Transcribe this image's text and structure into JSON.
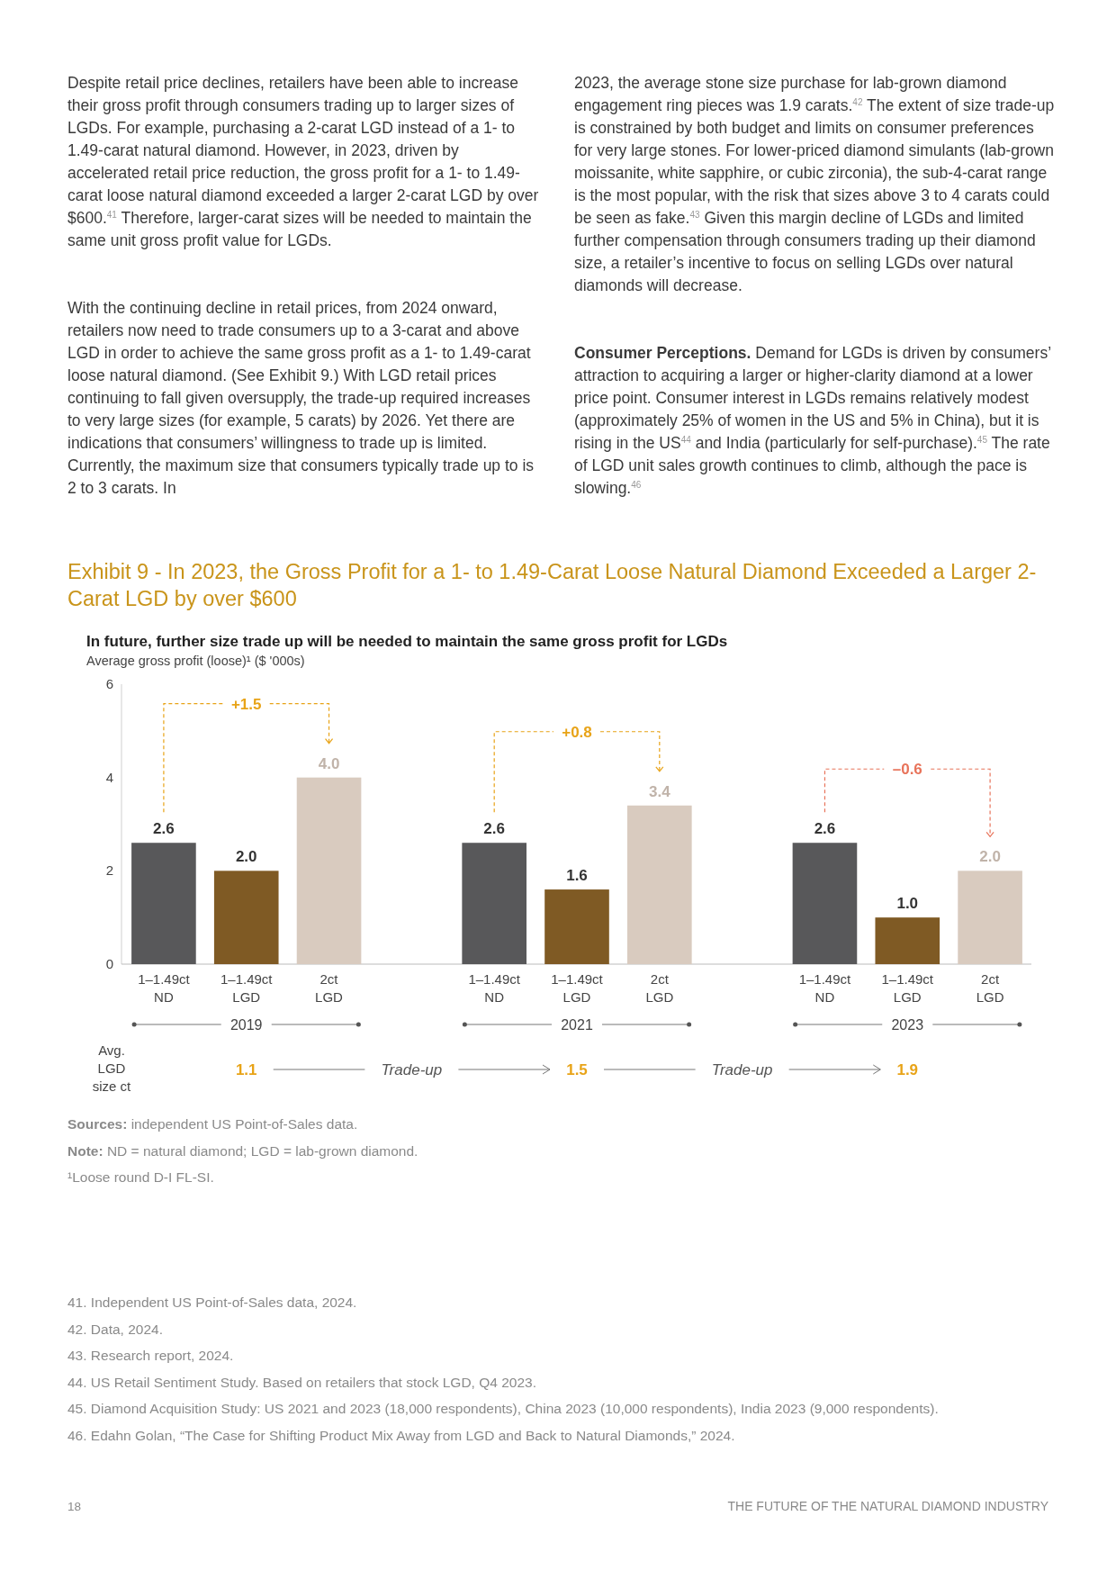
{
  "chart_data": {
    "type": "bar",
    "title": "Exhibit 9 - In 2023, the Gross Profit for a 1- to 1.49-Carat Loose Natural Diamond Exceeded a Larger 2-Carat LGD by over $600",
    "subtitle": "In future, further size trade up will be needed to maintain the same gross profit for LGDs",
    "ylabel": "Average gross profit (loose)¹ ($ '000s)",
    "categories": [
      "1–1.49ct\nND",
      "1–1.49ct\nLGD",
      "2ct\nLGD",
      null,
      "1–1.49ct\nND",
      "1–1.49ct\nLGD",
      "2ct\nLGD",
      null,
      "1–1.49ct\nND",
      "1–1.49ct\nLGD",
      "2ct\nLGD"
    ],
    "values": [
      2.6,
      2.0,
      4.0,
      null,
      2.6,
      1.6,
      3.4,
      null,
      2.6,
      1.0,
      2.0
    ],
    "colors": [
      "#58585a",
      "#7f5a24",
      "#d9cbbf",
      null,
      "#58585a",
      "#7f5a24",
      "#d9cbbf",
      null,
      "#58585a",
      "#7f5a24",
      "#d9cbbf"
    ],
    "value_labels": [
      "2.6",
      "2.0",
      "4.0",
      null,
      "2.6",
      "1.6",
      "3.4",
      null,
      "2.6",
      "1.0",
      "2.0"
    ],
    "ylim": [
      0,
      6
    ],
    "yticks": [
      0,
      2,
      4,
      6
    ],
    "grid": false,
    "annotations": [
      "Despite retail price declines, retailers have been able to increase their gross profit through consumers trading up to larger sizes of LGDs. For example, purchasing a 2-carat LGD instead of a 1- to 1.49-carat natural diamond. However, in 2023, driven by accelerated retail price reduction, the gross profit for a 1- to 1.49-carat loose natural diamond exceeded a larger 2-carat LGD by over $600.$^{41}$ Therefore, larger-carat sizes will be needed to maintain the same unit gross profit value for LGDs.",
      "With the continuing decline in retail prices, from 2024 onward, retailers now need to trade consumers up to a 3-carat and above LGD in order to achieve the same gross profit as a 1- to 1.49-carat loose natural diamond. (See Exhibit 9.) With LGD retail prices continuing to fall given oversupply, the trade-up required increases to very large sizes (for example, 5 carats) by 2026. Yet there are indications that consumers’ willingness to trade up is limited. Currently, the maximum size that consumers typically trade up to is 2 to 3 carats. In",
      "2023, the average stone size purchase for lab-grown diamond engagement ring pieces was 1.9 carats.$^{42}$ The extent of size trade-up is constrained by both budget and limits on consumer preferences for very large stones. For lower-priced diamond simulants (lab-grown moissanite, white sapphire, or cubic zirconia), the sub-4-carat range is the most popular, with the risk that sizes above 3 to 4 carats could be seen as fake.$^{43}$ Given this margin decline of LGDs and limited further compensation through consumers trading up their diamond size, a retailer’s incentive to focus on selling LGDs over natural diamonds will decrease.",
      "Consumer Perceptions.",
      "Demand for LGDs is driven by consumers’ attraction to acquiring a larger or higher-clarity diamond at a lower price point. Consumer interest in LGDs remains relatively modest (approximately 25% of women in the US and 5% in China), but it is rising in the US$^{44}$ and India (particularly for self-purchase).$^{45}$ The rate of LGD unit sales growth continues to climb, although the pace is slowing.$^{46}$",
      "+1.5",
      "+0.8",
      "–0.6",
      "2019",
      "2021",
      "2023",
      "Avg.\nLGD\nsize ct",
      "1.1",
      "Trade-up",
      "1.5",
      "Trade-up",
      "1.9",
      "Sources: independent US Point-of-Sales data.",
      "Note: ND = natural diamond; LGD = lab-grown diamond.",
      "¹Loose round D-I FL-SI.",
      "41. Independent US Point-of-Sales data, 2024.",
      "42. Data, 2024.",
      "43. Research report, 2024.",
      "44. US Retail Sentiment Study. Based on retailers that stock LGD, Q4 2023.",
      "45. Diamond Acquisition Study: US 2021 and 2023 (18,000 respondents), China 2023 (10,000 respondents), India 2023 (9,000 respondents).",
      "46. Edahn Golan, “The Case for Shifting Product Mix Away from LGD and Back to Natural Diamonds,” 2024.",
      "18",
      "THE FUTURE OF THE NATURAL DIAMOND INDUSTRY"
    ]
  }
}
